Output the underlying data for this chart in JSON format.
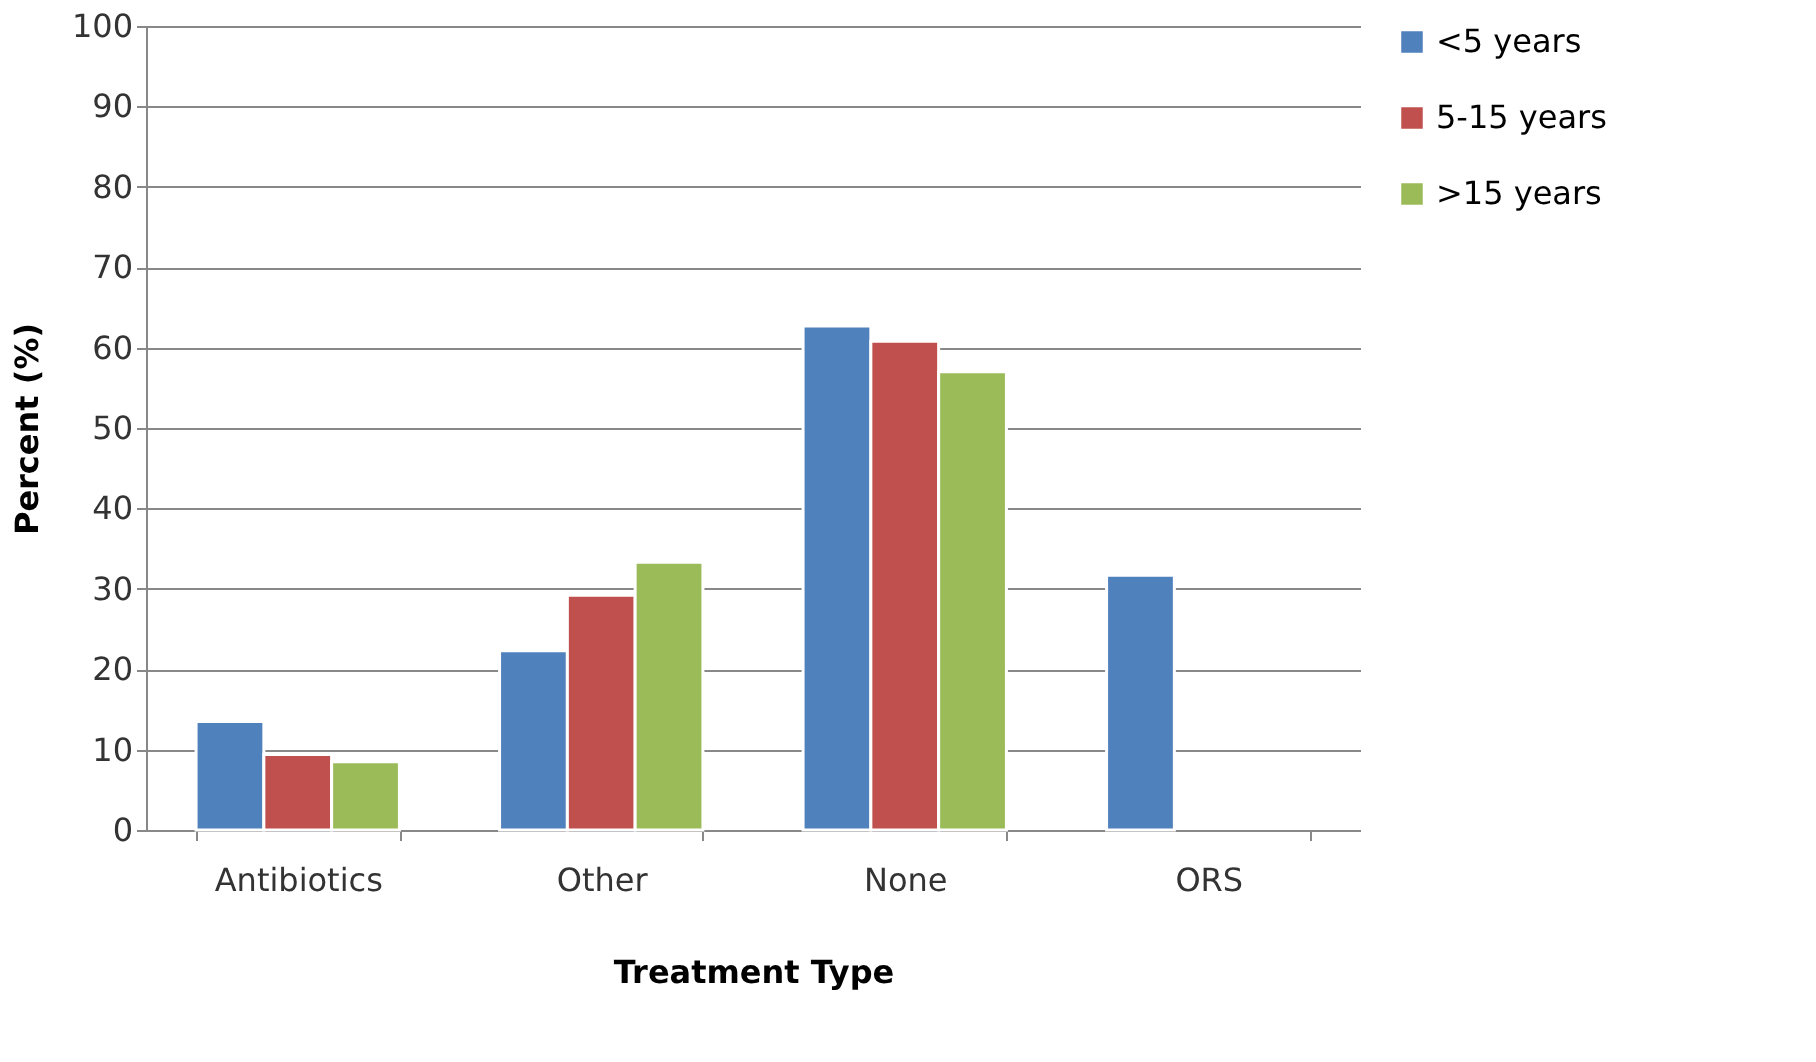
{
  "chart_data": {
    "type": "bar",
    "xlabel": "Treatment Type",
    "ylabel": "Percent (%)",
    "categories": [
      "Antibiotics",
      "Other",
      "None",
      "ORS"
    ],
    "series": [
      {
        "name": "<5 years",
        "color": "#4f81bd",
        "values": [
          13.5,
          22.3,
          62.7,
          31.7
        ]
      },
      {
        "name": "5-15 years",
        "color": "#c0504d",
        "values": [
          9.4,
          29.2,
          60.8,
          null
        ]
      },
      {
        "name": ">15 years",
        "color": "#9bbb59",
        "values": [
          8.5,
          33.3,
          57,
          null
        ]
      }
    ],
    "ylim": [
      0,
      100
    ],
    "yticks": [
      0,
      10,
      20,
      30,
      40,
      50,
      60,
      70,
      80,
      90,
      100
    ],
    "grid": "y",
    "legend": "right"
  }
}
